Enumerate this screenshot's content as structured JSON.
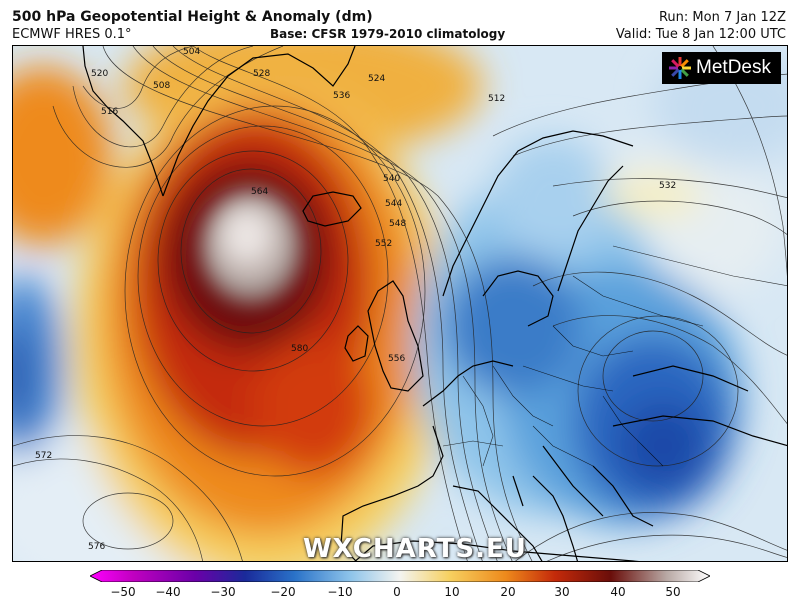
{
  "header": {
    "title": "500 hPa Geopotential Height & Anomaly (dm)",
    "model": "ECMWF HRES 0.1°",
    "base": "Base: CFSR 1979-2010 climatology",
    "run": "Run: Mon 7 Jan 12Z",
    "valid": "Valid: Tue 8 Jan 12:00 UTC"
  },
  "logo": {
    "text": "MetDesk",
    "icon": "metdesk-star-icon"
  },
  "watermark": "WXCHARTS.EU",
  "contour_labels": [
    "504",
    "508",
    "512",
    "516",
    "520",
    "524",
    "528",
    "532",
    "536",
    "540",
    "544",
    "548",
    "552",
    "556",
    "564",
    "572",
    "576",
    "580"
  ],
  "colorbar": {
    "ticks": [
      "−50",
      "−40",
      "−30",
      "−20",
      "−10",
      "0",
      "10",
      "20",
      "30",
      "40",
      "50"
    ],
    "colors": [
      "#c000c0",
      "#6a00a8",
      "#1a2a9a",
      "#2a72c8",
      "#8ec4ea",
      "#f4f4f0",
      "#f6d060",
      "#ee8a1c",
      "#c42a0a",
      "#6a0e0a",
      "#b8a8a4",
      "#f0ecec"
    ]
  }
}
